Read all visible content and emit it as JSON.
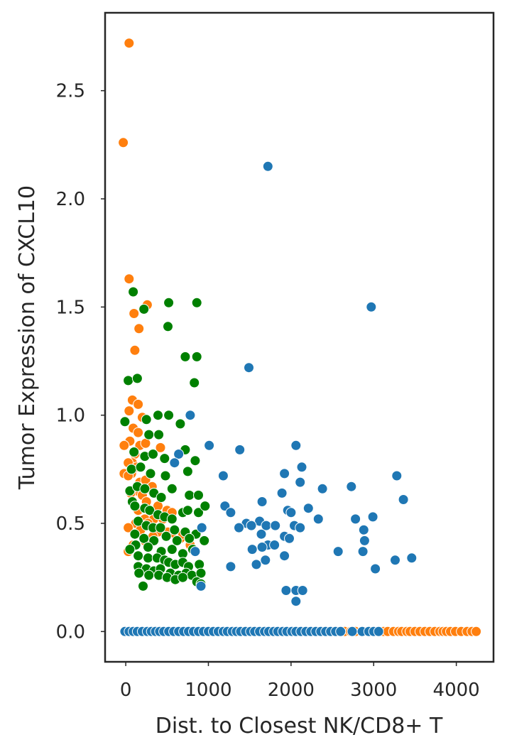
{
  "chart_data": {
    "type": "scatter",
    "title": "",
    "xlabel": "Dist. to Closest NK/CD8+ T",
    "ylabel": "Tumor Expression of CXCL10",
    "xlim": [
      -250,
      4450
    ],
    "ylim": [
      -0.14,
      2.86
    ],
    "xticks": [
      0,
      1000,
      2000,
      3000,
      4000
    ],
    "xtick_labels": [
      "0",
      "1000",
      "2000",
      "3000",
      "4000"
    ],
    "yticks": [
      0.0,
      0.5,
      1.0,
      1.5,
      2.0,
      2.5
    ],
    "ytick_labels": [
      "0.0",
      "0.5",
      "1.0",
      "1.5",
      "2.0",
      "2.5"
    ],
    "grid": false,
    "legend": "none",
    "series": [
      {
        "color": "#ff7f0e",
        "points": [
          [
            40,
            2.72
          ],
          [
            -30,
            2.26
          ],
          [
            40,
            1.63
          ],
          [
            100,
            1.47
          ],
          [
            260,
            1.51
          ],
          [
            110,
            1.3
          ],
          [
            160,
            1.4
          ],
          [
            30,
            1.16
          ],
          [
            80,
            1.07
          ],
          [
            40,
            1.02
          ],
          [
            150,
            1.05
          ],
          [
            200,
            0.99
          ],
          [
            90,
            0.94
          ],
          [
            150,
            0.92
          ],
          [
            50,
            0.88
          ],
          [
            170,
            0.86
          ],
          [
            240,
            0.87
          ],
          [
            -20,
            0.86
          ],
          [
            110,
            0.82
          ],
          [
            420,
            0.85
          ],
          [
            80,
            0.78
          ],
          [
            30,
            0.78
          ],
          [
            130,
            0.76
          ],
          [
            70,
            0.73
          ],
          [
            -20,
            0.73
          ],
          [
            30,
            0.72
          ],
          [
            170,
            0.69
          ],
          [
            240,
            0.7
          ],
          [
            280,
            0.66
          ],
          [
            320,
            0.67
          ],
          [
            130,
            0.65
          ],
          [
            200,
            0.63
          ],
          [
            60,
            0.64
          ],
          [
            250,
            0.6
          ],
          [
            390,
            0.58
          ],
          [
            500,
            0.56
          ],
          [
            560,
            0.55
          ],
          [
            150,
            0.56
          ],
          [
            300,
            0.54
          ],
          [
            230,
            0.52
          ],
          [
            340,
            0.52
          ],
          [
            450,
            0.52
          ],
          [
            270,
            0.5
          ],
          [
            120,
            0.5
          ],
          [
            30,
            0.48
          ],
          [
            180,
            0.47
          ],
          [
            390,
            0.46
          ],
          [
            510,
            0.46
          ],
          [
            330,
            0.44
          ],
          [
            230,
            0.42
          ],
          [
            90,
            0.4
          ],
          [
            600,
            0.45
          ],
          [
            660,
            0.43
          ],
          [
            690,
            0.45
          ],
          [
            780,
            0.4
          ],
          [
            30,
            0.37
          ],
          [
            2650,
            0
          ],
          [
            2720,
            0
          ],
          [
            2780,
            0
          ],
          [
            2860,
            0
          ],
          [
            2920,
            0
          ],
          [
            3020,
            0
          ],
          [
            3120,
            0
          ],
          [
            3170,
            0
          ],
          [
            3240,
            0
          ],
          [
            3300,
            0
          ],
          [
            3340,
            0
          ],
          [
            3400,
            0
          ],
          [
            3440,
            0
          ],
          [
            3500,
            0
          ],
          [
            3560,
            0
          ],
          [
            3620,
            0
          ],
          [
            3680,
            0
          ],
          [
            3740,
            0
          ],
          [
            3800,
            0
          ],
          [
            3840,
            0
          ],
          [
            3880,
            0
          ],
          [
            3930,
            0
          ],
          [
            3990,
            0
          ],
          [
            4060,
            0
          ],
          [
            4130,
            0
          ],
          [
            4190,
            0
          ],
          [
            4240,
            0
          ]
        ]
      },
      {
        "color": "#008000",
        "points": [
          [
            90,
            1.57
          ],
          [
            220,
            1.49
          ],
          [
            520,
            1.52
          ],
          [
            860,
            1.52
          ],
          [
            510,
            1.41
          ],
          [
            30,
            1.16
          ],
          [
            140,
            1.17
          ],
          [
            720,
            1.27
          ],
          [
            860,
            1.27
          ],
          [
            830,
            1.15
          ],
          [
            -10,
            0.97
          ],
          [
            250,
            0.98
          ],
          [
            390,
            1.0
          ],
          [
            520,
            1.0
          ],
          [
            280,
            0.91
          ],
          [
            400,
            0.91
          ],
          [
            660,
            0.96
          ],
          [
            100,
            0.83
          ],
          [
            230,
            0.81
          ],
          [
            330,
            0.82
          ],
          [
            470,
            0.8
          ],
          [
            720,
            0.84
          ],
          [
            840,
            0.79
          ],
          [
            70,
            0.75
          ],
          [
            180,
            0.76
          ],
          [
            300,
            0.73
          ],
          [
            480,
            0.72
          ],
          [
            750,
            0.74
          ],
          [
            50,
            0.65
          ],
          [
            140,
            0.67
          ],
          [
            230,
            0.66
          ],
          [
            340,
            0.64
          ],
          [
            430,
            0.62
          ],
          [
            560,
            0.66
          ],
          [
            770,
            0.63
          ],
          [
            880,
            0.63
          ],
          [
            80,
            0.6
          ],
          [
            110,
            0.58
          ],
          [
            230,
            0.57
          ],
          [
            290,
            0.56
          ],
          [
            390,
            0.54
          ],
          [
            470,
            0.53
          ],
          [
            560,
            0.52
          ],
          [
            690,
            0.55
          ],
          [
            750,
            0.56
          ],
          [
            880,
            0.55
          ],
          [
            960,
            0.58
          ],
          [
            150,
            0.51
          ],
          [
            250,
            0.49
          ],
          [
            330,
            0.48
          ],
          [
            420,
            0.48
          ],
          [
            590,
            0.47
          ],
          [
            720,
            0.46
          ],
          [
            850,
            0.45
          ],
          [
            110,
            0.45
          ],
          [
            220,
            0.43
          ],
          [
            340,
            0.42
          ],
          [
            490,
            0.44
          ],
          [
            620,
            0.42
          ],
          [
            770,
            0.43
          ],
          [
            950,
            0.42
          ],
          [
            120,
            0.4
          ],
          [
            270,
            0.39
          ],
          [
            430,
            0.37
          ],
          [
            560,
            0.38
          ],
          [
            690,
            0.36
          ],
          [
            810,
            0.38
          ],
          [
            50,
            0.38
          ],
          [
            150,
            0.35
          ],
          [
            270,
            0.34
          ],
          [
            380,
            0.34
          ],
          [
            470,
            0.33
          ],
          [
            520,
            0.32
          ],
          [
            600,
            0.31
          ],
          [
            690,
            0.32
          ],
          [
            760,
            0.3
          ],
          [
            890,
            0.31
          ],
          [
            150,
            0.3
          ],
          [
            250,
            0.29
          ],
          [
            340,
            0.28
          ],
          [
            420,
            0.29
          ],
          [
            540,
            0.27
          ],
          [
            640,
            0.26
          ],
          [
            730,
            0.27
          ],
          [
            800,
            0.26
          ],
          [
            910,
            0.27
          ],
          [
            160,
            0.27
          ],
          [
            280,
            0.26
          ],
          [
            400,
            0.26
          ],
          [
            500,
            0.25
          ],
          [
            600,
            0.24
          ],
          [
            690,
            0.25
          ],
          [
            860,
            0.23
          ],
          [
            910,
            0.22
          ],
          [
            210,
            0.21
          ]
        ]
      },
      {
        "color": "#1f77b4",
        "points": [
          [
            1720,
            2.15
          ],
          [
            2970,
            1.5
          ],
          [
            1490,
            1.22
          ],
          [
            780,
            1.0
          ],
          [
            1010,
            0.86
          ],
          [
            1380,
            0.84
          ],
          [
            2060,
            0.86
          ],
          [
            640,
            0.82
          ],
          [
            590,
            0.78
          ],
          [
            1180,
            0.72
          ],
          [
            1920,
            0.73
          ],
          [
            3280,
            0.72
          ],
          [
            2130,
            0.76
          ],
          [
            2110,
            0.69
          ],
          [
            2730,
            0.67
          ],
          [
            2380,
            0.66
          ],
          [
            1890,
            0.64
          ],
          [
            3360,
            0.61
          ],
          [
            1200,
            0.58
          ],
          [
            1650,
            0.6
          ],
          [
            2210,
            0.57
          ],
          [
            1960,
            0.56
          ],
          [
            2000,
            0.55
          ],
          [
            2780,
            0.52
          ],
          [
            2330,
            0.52
          ],
          [
            2990,
            0.53
          ],
          [
            1270,
            0.55
          ],
          [
            1460,
            0.5
          ],
          [
            1620,
            0.51
          ],
          [
            1700,
            0.49
          ],
          [
            1520,
            0.49
          ],
          [
            1810,
            0.49
          ],
          [
            1370,
            0.48
          ],
          [
            2040,
            0.49
          ],
          [
            2110,
            0.48
          ],
          [
            2880,
            0.47
          ],
          [
            1640,
            0.45
          ],
          [
            1920,
            0.44
          ],
          [
            1980,
            0.43
          ],
          [
            920,
            0.48
          ],
          [
            2890,
            0.42
          ],
          [
            1720,
            0.4
          ],
          [
            1800,
            0.4
          ],
          [
            1650,
            0.39
          ],
          [
            1530,
            0.38
          ],
          [
            2570,
            0.37
          ],
          [
            2870,
            0.37
          ],
          [
            840,
            0.37
          ],
          [
            3460,
            0.34
          ],
          [
            1690,
            0.33
          ],
          [
            3260,
            0.33
          ],
          [
            1270,
            0.3
          ],
          [
            1580,
            0.31
          ],
          [
            3020,
            0.29
          ],
          [
            1920,
            0.35
          ],
          [
            1940,
            0.19
          ],
          [
            2060,
            0.19
          ],
          [
            2140,
            0.19
          ],
          [
            2060,
            0.14
          ],
          [
            910,
            0.21
          ],
          [
            -10,
            0
          ],
          [
            40,
            0
          ],
          [
            90,
            0
          ],
          [
            140,
            0
          ],
          [
            200,
            0
          ],
          [
            260,
            0
          ],
          [
            310,
            0
          ],
          [
            360,
            0
          ],
          [
            410,
            0
          ],
          [
            460,
            0
          ],
          [
            520,
            0
          ],
          [
            580,
            0
          ],
          [
            640,
            0
          ],
          [
            700,
            0
          ],
          [
            760,
            0
          ],
          [
            820,
            0
          ],
          [
            880,
            0
          ],
          [
            940,
            0
          ],
          [
            1000,
            0
          ],
          [
            1060,
            0
          ],
          [
            1120,
            0
          ],
          [
            1180,
            0
          ],
          [
            1230,
            0
          ],
          [
            1290,
            0
          ],
          [
            1340,
            0
          ],
          [
            1390,
            0
          ],
          [
            1450,
            0
          ],
          [
            1510,
            0
          ],
          [
            1560,
            0
          ],
          [
            1620,
            0
          ],
          [
            1680,
            0
          ],
          [
            1730,
            0
          ],
          [
            1790,
            0
          ],
          [
            1840,
            0
          ],
          [
            1900,
            0
          ],
          [
            1950,
            0
          ],
          [
            2010,
            0
          ],
          [
            2060,
            0
          ],
          [
            2120,
            0
          ],
          [
            2180,
            0
          ],
          [
            2240,
            0
          ],
          [
            2300,
            0
          ],
          [
            2360,
            0
          ],
          [
            2420,
            0
          ],
          [
            2480,
            0
          ],
          [
            2540,
            0
          ],
          [
            2600,
            0
          ],
          [
            2740,
            0
          ],
          [
            2860,
            0
          ],
          [
            2940,
            0
          ],
          [
            3000,
            0
          ],
          [
            3060,
            0
          ]
        ]
      }
    ]
  }
}
